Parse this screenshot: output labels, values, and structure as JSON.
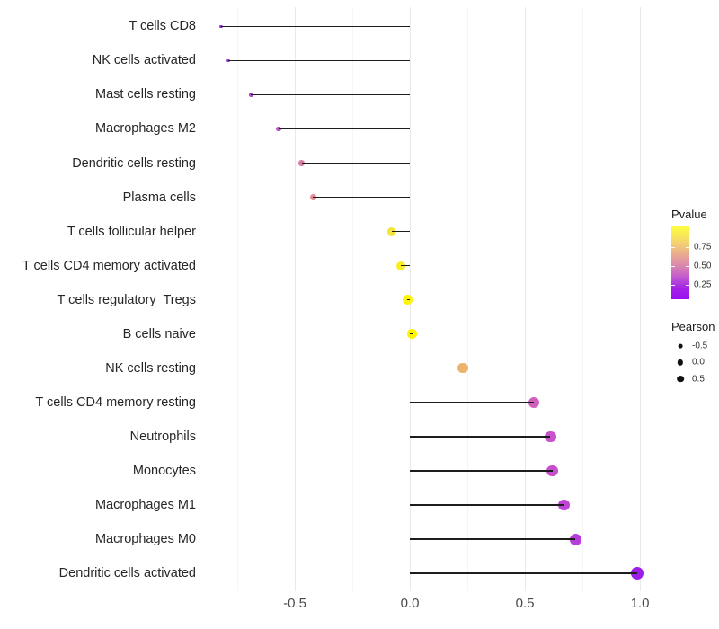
{
  "chart_data": {
    "type": "scatter",
    "subtype": "lollipop",
    "title": "",
    "xlabel": "",
    "ylabel": "",
    "xlim": [
      -0.875,
      1.06
    ],
    "grid": "vertical-only",
    "x_ticks": [
      {
        "value": -0.5,
        "label": "-0.5"
      },
      {
        "value": 0.0,
        "label": "0.0"
      },
      {
        "value": 0.5,
        "label": "0.5"
      },
      {
        "value": 1.0,
        "label": "1.0"
      }
    ],
    "minor_gridlines": [
      -0.75,
      -0.25,
      0.25,
      0.75
    ],
    "baseline_x": 0.0,
    "points": [
      {
        "category": "T cells CD8",
        "pearson": -0.82,
        "color": "#9430d6"
      },
      {
        "category": "NK cells activated",
        "pearson": -0.79,
        "color": "#9a38d0"
      },
      {
        "category": "Mast cells resting",
        "pearson": -0.69,
        "color": "#a847c9"
      },
      {
        "category": "Macrophages M2",
        "pearson": -0.57,
        "color": "#b857be"
      },
      {
        "category": "Dendritic cells resting",
        "pearson": -0.47,
        "color": "#d97da5"
      },
      {
        "category": "Plasma cells",
        "pearson": -0.42,
        "color": "#e78b96"
      },
      {
        "category": "T cells follicular helper",
        "pearson": -0.08,
        "color": "#f4e53a"
      },
      {
        "category": "T cells CD4 memory activated",
        "pearson": -0.04,
        "color": "#f9ee1f"
      },
      {
        "category": "T cells regulatory  Tregs",
        "pearson": -0.01,
        "color": "#fdf40a"
      },
      {
        "category": "B cells naive",
        "pearson": 0.01,
        "color": "#fdf303"
      },
      {
        "category": "NK cells resting",
        "pearson": 0.23,
        "color": "#edb36c"
      },
      {
        "category": "T cells CD4 memory resting",
        "pearson": 0.54,
        "color": "#d160bc"
      },
      {
        "category": "Neutrophils",
        "pearson": 0.61,
        "color": "#c951c9"
      },
      {
        "category": "Monocytes",
        "pearson": 0.62,
        "color": "#c84fcb"
      },
      {
        "category": "Macrophages M1",
        "pearson": 0.67,
        "color": "#bd44d5"
      },
      {
        "category": "Macrophages M0",
        "pearson": 0.72,
        "color": "#b63cdb"
      },
      {
        "category": "Dendritic cells activated",
        "pearson": 0.99,
        "color": "#9c1fe9"
      }
    ],
    "legend_pvalue": {
      "title": "Pvalue",
      "ticks": [
        "0.75",
        "0.50",
        "0.25"
      ],
      "gradient": [
        "#fbfd3f",
        "#f7e45c",
        "#f0c47e",
        "#e5a098",
        "#d57fb5",
        "#bc54d2",
        "#a321e6",
        "#9a0fef"
      ]
    },
    "legend_pearson": {
      "title": "Pearson",
      "items": [
        {
          "label": "-0.5",
          "diameter": 4.8
        },
        {
          "label": "0.0",
          "diameter": 6.3
        },
        {
          "label": "0.5",
          "diameter": 7.7
        }
      ]
    },
    "style": {
      "segment_color": "#1d1d1d",
      "major_grid_color": "#e9e9e9",
      "minor_grid_color": "#f5f5f5"
    }
  }
}
